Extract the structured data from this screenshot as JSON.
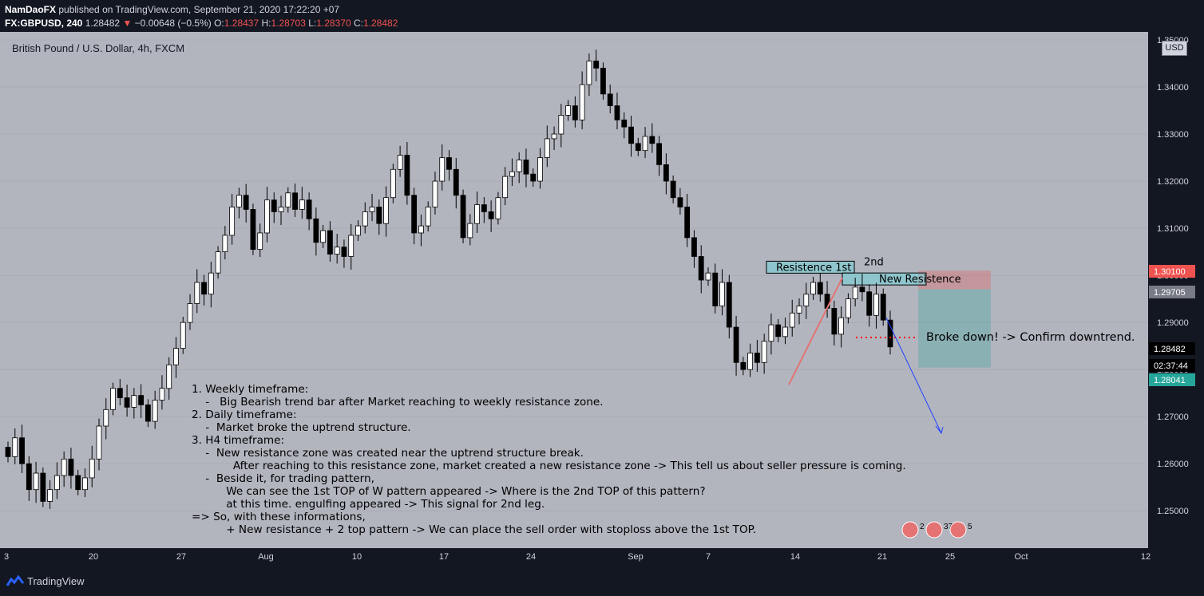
{
  "header": {
    "author": "NamDaoFX",
    "published": "published on TradingView.com, September 21, 2020 17:22:20 +07",
    "symbol": "FX:GBPUSD, 240",
    "last": "1.28482",
    "change": "−0.00648 (−0.5%)",
    "o_label": "O:",
    "o_value": "1.28437",
    "h_label": "H:",
    "h_value": "1.28703",
    "l_label": "L:",
    "l_value": "1.28370",
    "c_label": "C:",
    "c_value": "1.28482"
  },
  "chart_data": {
    "type": "candlestick",
    "title": "British Pound / U.S. Dollar, 4h, FXCM",
    "currency": "USD",
    "ylim": [
      1.2475,
      1.3505
    ],
    "yticks": [
      "1.35000",
      "1.34000",
      "1.33000",
      "1.32000",
      "1.31000",
      "1.30000",
      "1.29000",
      "1.28000",
      "1.27000",
      "1.26000",
      "1.25000"
    ],
    "xticks": [
      "3",
      "20",
      "27",
      "Aug",
      "10",
      "17",
      "24",
      "Sep",
      "7",
      "14",
      "21",
      "25",
      "Oct",
      "12"
    ],
    "price_tags": [
      {
        "value": "1.30100",
        "color": "#ef5350"
      },
      {
        "value": "1.29705",
        "color": "#787b86"
      },
      {
        "value": "1.28482",
        "color": "#000000"
      },
      {
        "value": "02:37:44",
        "color": "#000000"
      },
      {
        "value": "1.28041",
        "color": "#26a69a"
      }
    ],
    "series": [
      {
        "values": [
          1.2615,
          1.2655,
          1.26,
          1.2545,
          1.258,
          1.252,
          1.2545,
          1.2575,
          1.261,
          1.2575,
          1.2545,
          1.257,
          1.261,
          1.268,
          1.2715,
          1.276,
          1.274,
          1.272,
          1.2745,
          1.2725,
          1.269,
          1.2735,
          1.276,
          1.281,
          1.2845,
          1.29,
          1.294,
          1.2985,
          1.296,
          1.3005,
          1.305,
          1.3085,
          1.3145,
          1.317,
          1.314,
          1.3055,
          1.309,
          1.316,
          1.3135,
          1.3145,
          1.3175,
          1.314,
          1.316,
          1.312,
          1.307,
          1.3095,
          1.3045,
          1.306,
          1.304,
          1.3085,
          1.3105,
          1.3135,
          1.3145,
          1.311,
          1.3165,
          1.3225,
          1.3255,
          1.317,
          1.309,
          1.3105,
          1.3145,
          1.32,
          1.325,
          1.3225,
          1.317,
          1.308,
          1.311,
          1.315,
          1.3135,
          1.312,
          1.3165,
          1.321,
          1.322,
          1.3245,
          1.3215,
          1.32,
          1.325,
          1.329,
          1.33,
          1.334,
          1.336,
          1.333,
          1.3405,
          1.3455,
          1.344,
          1.3385,
          1.336,
          1.333,
          1.3315,
          1.328,
          1.3265,
          1.3295,
          1.328,
          1.3235,
          1.32,
          1.3165,
          1.3145,
          1.308,
          1.304,
          1.299,
          1.3005,
          1.2935,
          1.2985,
          1.289,
          1.2815,
          1.28,
          1.2835,
          1.2815,
          1.286,
          1.2895,
          1.287,
          1.289,
          1.292,
          1.2935,
          1.296,
          1.2985,
          1.296,
          1.293,
          1.2875,
          1.291,
          1.295,
          1.2975,
          1.2965,
          1.2915,
          1.296,
          1.2905,
          1.2848
        ]
      }
    ]
  },
  "annotations": {
    "resistance_1st": "Resistence 1st",
    "second": "2nd",
    "new_resistance": "New Resistence",
    "broke_down": "Broke down! -> Confirm downtrend."
  },
  "notes": [
    "1. Weekly timeframe:",
    "    -   Big Bearish trend bar after Market reaching to weekly resistance zone.",
    "2. Daily timeframe:",
    "    -  Market broke the uptrend structure.",
    "3. H4 timeframe:",
    "    -  New resistance zone was created near the uptrend structure break.",
    "            After reaching to this resistance zone, market created a new resistance zone -> This tell us about seller pressure is coming.",
    "    -  Beside it, for trading pattern,",
    "          We can see the 1st TOP of W pattern appeared -> Where is the 2nd TOP of this pattern?",
    "          at this time. engulfing appeared -> This signal for 2nd leg.",
    "=> So, with these informations,",
    "          + New resistance + 2 top pattern -> We can place the sell order with stoploss above the 1st TOP."
  ],
  "events": [
    "2",
    "37",
    "5"
  ],
  "footer": {
    "brand": "TradingView"
  },
  "colors": {
    "up": "#ffffff",
    "down": "#000000",
    "background": "#b2b5be",
    "panel": "#131722"
  }
}
